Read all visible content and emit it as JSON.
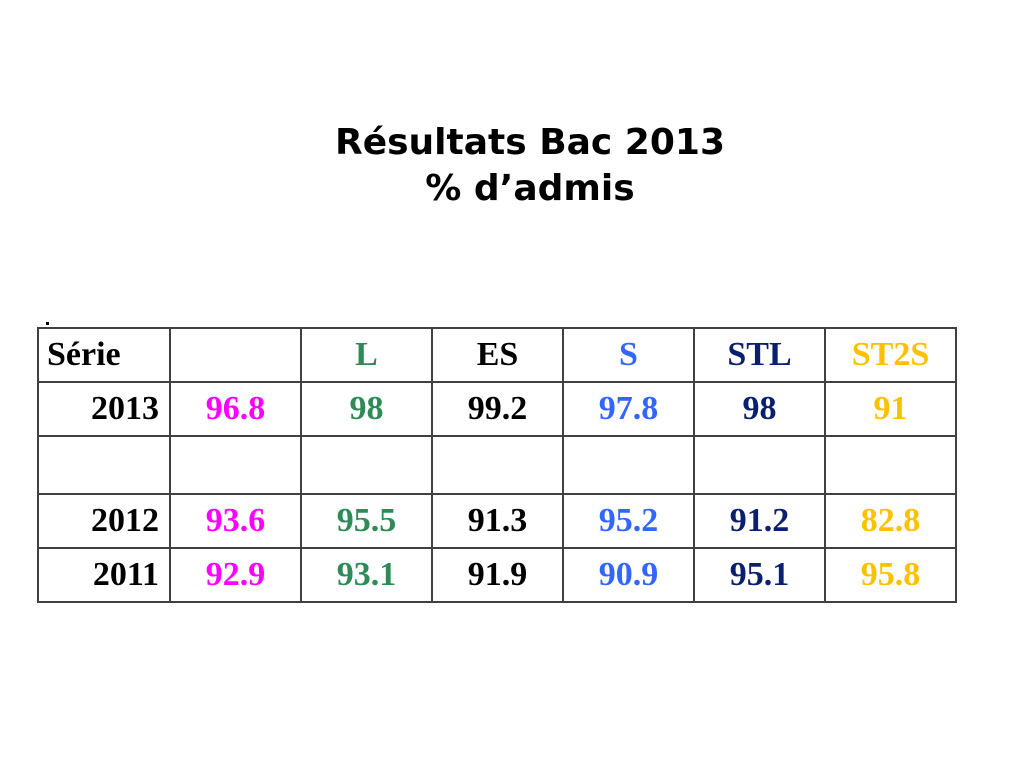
{
  "title": {
    "line1": "Résultats Bac 2013",
    "line2": "% d’admis"
  },
  "table": {
    "columns": [
      {
        "label": "Série",
        "color": "#000000"
      },
      {
        "label": "",
        "color": "#ff00ff"
      },
      {
        "label": "L",
        "color": "#2e8b57"
      },
      {
        "label": "ES",
        "color": "#000000"
      },
      {
        "label": "S",
        "color": "#3366ff"
      },
      {
        "label": "STL",
        "color": "#0a1f6e"
      },
      {
        "label": "ST2S",
        "color": "#ffc000"
      }
    ],
    "rows": [
      {
        "year": "2013",
        "values": [
          "96.8",
          "98",
          "99.2",
          "97.8",
          "98",
          "91"
        ]
      },
      {
        "year": "",
        "values": [
          "",
          "",
          "",
          "",
          "",
          ""
        ]
      },
      {
        "year": "2012",
        "values": [
          "93.6",
          "95.5",
          "91.3",
          "95.2",
          "91.2",
          "82.8"
        ]
      },
      {
        "year": "2011",
        "values": [
          "92.9",
          "93.1",
          "91.9",
          "90.9",
          "95.1",
          "95.8"
        ]
      }
    ]
  }
}
